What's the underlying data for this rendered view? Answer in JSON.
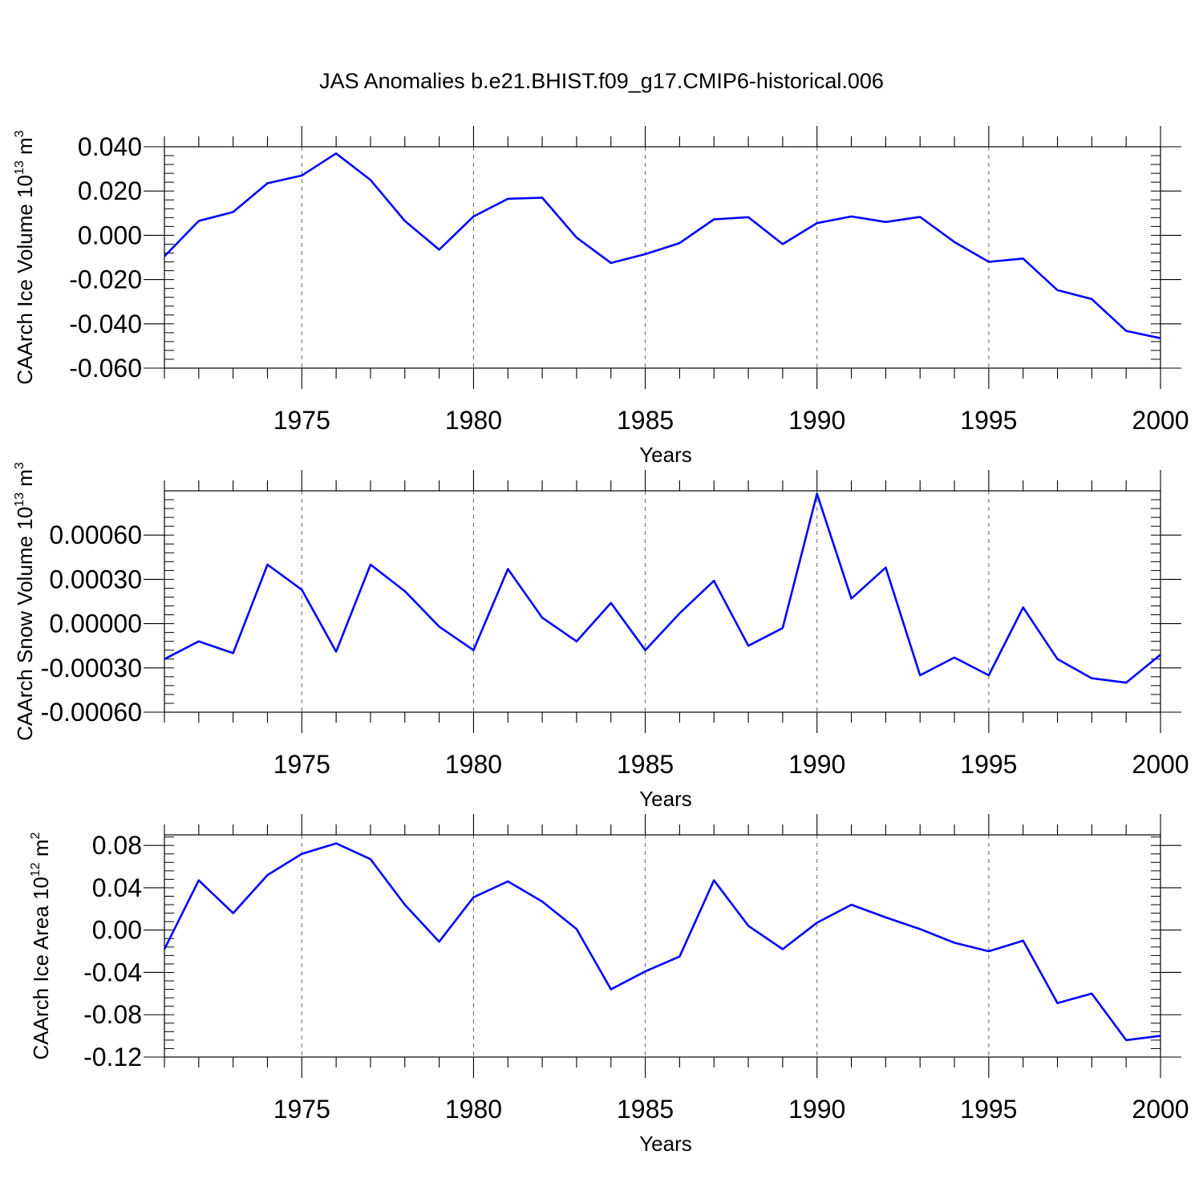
{
  "title": "JAS Anomalies b.e21.BHIST.f09_g17.CMIP6-historical.006",
  "colors": {
    "line": "#0000ff",
    "axis": "#000000",
    "grid": "#666666"
  },
  "chart_data": [
    {
      "type": "line",
      "name": "ice-volume",
      "ylabel": "CAArch Ice Volume 10",
      "ylabel_exp": "13",
      "ylabel_unit": " m",
      "ylabel_unit_exp": "3",
      "xlabel": "Years",
      "xlim": [
        1971,
        2000
      ],
      "ylim": [
        -0.06,
        0.04
      ],
      "yticks": [
        -0.06,
        -0.04,
        -0.02,
        0.0,
        0.02,
        0.04
      ],
      "ytick_labels": [
        "-0.060",
        "-0.040",
        "-0.020",
        "0.000",
        "0.020",
        "0.040"
      ],
      "xticks": [
        1975,
        1980,
        1985,
        1990,
        1995,
        2000
      ],
      "xtick_labels": [
        "1975",
        "1980",
        "1985",
        "1990",
        "1995",
        "2000"
      ],
      "grid_x": [
        1975,
        1980,
        1985,
        1990,
        1995
      ],
      "x": [
        1971,
        1972,
        1973,
        1974,
        1975,
        1976,
        1977,
        1978,
        1979,
        1980,
        1981,
        1982,
        1983,
        1984,
        1985,
        1986,
        1987,
        1988,
        1989,
        1990,
        1991,
        1992,
        1993,
        1994,
        1995,
        1996,
        1997,
        1998,
        1999,
        2000
      ],
      "values": [
        -0.0095,
        0.0065,
        0.0105,
        0.0235,
        0.027,
        0.037,
        0.025,
        0.0065,
        -0.0065,
        0.0085,
        0.0165,
        0.017,
        -0.001,
        -0.0125,
        -0.0085,
        -0.0035,
        0.0072,
        0.0082,
        -0.004,
        0.0055,
        0.0085,
        0.006,
        0.0083,
        -0.003,
        -0.012,
        -0.0105,
        -0.0248,
        -0.0288,
        -0.0432,
        -0.0465
      ]
    },
    {
      "type": "line",
      "name": "snow-volume",
      "ylabel": "CAArch Snow Volume 10",
      "ylabel_exp": "13",
      "ylabel_unit": " m",
      "ylabel_unit_exp": "3",
      "xlabel": "Years",
      "xlim": [
        1971,
        2000
      ],
      "ylim": [
        -0.0006,
        0.0009
      ],
      "yticks": [
        -0.0006,
        -0.0003,
        0.0,
        0.0003,
        0.0006
      ],
      "ytick_labels": [
        "-0.00060",
        "-0.00030",
        "0.00000",
        "0.00030",
        "0.00060"
      ],
      "xticks": [
        1975,
        1980,
        1985,
        1990,
        1995,
        2000
      ],
      "xtick_labels": [
        "1975",
        "1980",
        "1985",
        "1990",
        "1995",
        "2000"
      ],
      "grid_x": [
        1975,
        1980,
        1985,
        1990,
        1995
      ],
      "x": [
        1971,
        1972,
        1973,
        1974,
        1975,
        1976,
        1977,
        1978,
        1979,
        1980,
        1981,
        1982,
        1983,
        1984,
        1985,
        1986,
        1987,
        1988,
        1989,
        1990,
        1991,
        1992,
        1993,
        1994,
        1995,
        1996,
        1997,
        1998,
        1999,
        2000
      ],
      "values": [
        -0.00024,
        -0.00012,
        -0.0002,
        0.0004,
        0.00023,
        -0.00019,
        0.0004,
        0.00022,
        -2e-05,
        -0.00018,
        0.00037,
        4e-05,
        -0.00012,
        0.00014,
        -0.00018,
        7e-05,
        0.00029,
        -0.00015,
        -3e-05,
        0.00088,
        0.00017,
        0.00038,
        -0.00035,
        -0.00023,
        -0.00035,
        0.00011,
        -0.00024,
        -0.00037,
        -0.0004,
        -0.00021
      ]
    },
    {
      "type": "line",
      "name": "ice-area",
      "ylabel": "CAArch Ice Area 10",
      "ylabel_exp": "12",
      "ylabel_unit": " m",
      "ylabel_unit_exp": "2",
      "xlabel": "Years",
      "xlim": [
        1971,
        2000
      ],
      "ylim": [
        -0.12,
        0.09
      ],
      "yticks": [
        -0.12,
        -0.08,
        -0.04,
        0.0,
        0.04,
        0.08
      ],
      "ytick_labels": [
        "-0.12",
        "-0.08",
        "-0.04",
        "0.00",
        "0.04",
        "0.08"
      ],
      "xticks": [
        1975,
        1980,
        1985,
        1990,
        1995,
        2000
      ],
      "xtick_labels": [
        "1975",
        "1980",
        "1985",
        "1990",
        "1995",
        "2000"
      ],
      "grid_x": [
        1975,
        1980,
        1985,
        1990,
        1995
      ],
      "x": [
        1971,
        1972,
        1973,
        1974,
        1975,
        1976,
        1977,
        1978,
        1979,
        1980,
        1981,
        1982,
        1983,
        1984,
        1985,
        1986,
        1987,
        1988,
        1989,
        1990,
        1991,
        1992,
        1993,
        1994,
        1995,
        1996,
        1997,
        1998,
        1999,
        2000
      ],
      "values": [
        -0.018,
        0.047,
        0.016,
        0.052,
        0.072,
        0.082,
        0.067,
        0.024,
        -0.011,
        0.031,
        0.046,
        0.027,
        0.001,
        -0.056,
        -0.039,
        -0.025,
        0.047,
        0.004,
        -0.018,
        0.007,
        0.024,
        0.012,
        0.001,
        -0.012,
        -0.02,
        -0.01,
        -0.069,
        -0.06,
        -0.104,
        -0.1
      ]
    }
  ]
}
